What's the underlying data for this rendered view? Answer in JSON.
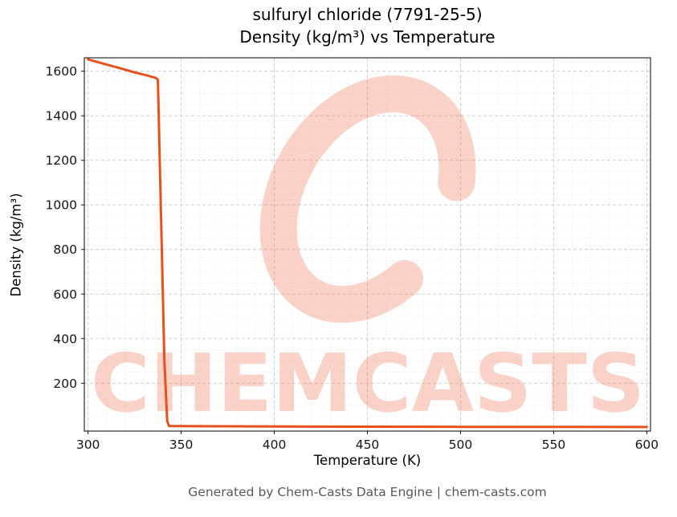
{
  "title": "sulfuryl chloride (7791-25-5)",
  "subtitle": "Density (kg/m³) vs Temperature",
  "footer": "Generated by Chem-Casts Data Engine | chem-casts.com",
  "watermark": {
    "logo": "C-swoosh-ring",
    "text": "CHEMCASTS",
    "color": "#ee6a46",
    "opacity": 0.3
  },
  "chart_data": {
    "type": "line",
    "title": "sulfuryl chloride (7791-25-5) — Density (kg/m³) vs Temperature",
    "xlabel": "Temperature (K)",
    "ylabel": "Density (kg/m³)",
    "xlim": [
      298,
      602
    ],
    "ylim": [
      -15,
      1660
    ],
    "x_ticks": [
      300,
      350,
      400,
      450,
      500,
      550,
      600
    ],
    "y_ticks": [
      200,
      400,
      600,
      800,
      1000,
      1200,
      1400,
      1600
    ],
    "x_minor_step": 10,
    "y_minor_step": 50,
    "grid": true,
    "legend": false,
    "line_color": "#e8511d",
    "line_width": 3,
    "series": [
      {
        "name": "density",
        "x": [
          300,
          308,
          316,
          324,
          332,
          336,
          337.5,
          341,
          342.5,
          343.5,
          360,
          400,
          450,
          500,
          550,
          600
        ],
        "y": [
          1653,
          1634,
          1616,
          1597,
          1580,
          1571,
          1562,
          300,
          30,
          8,
          7,
          5.6,
          4.7,
          4.1,
          3.6,
          3.3
        ]
      }
    ]
  }
}
